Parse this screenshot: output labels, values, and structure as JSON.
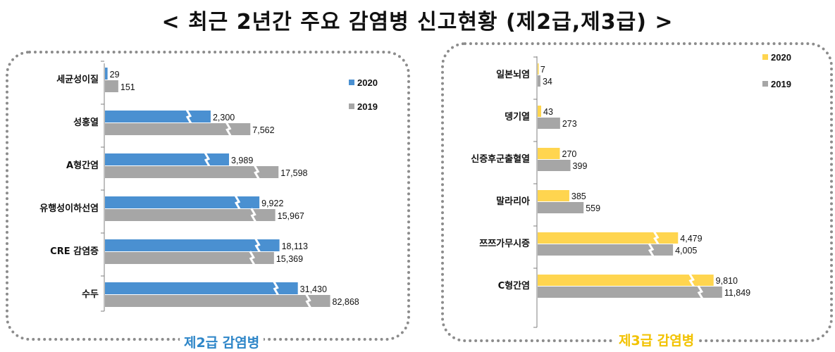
{
  "page_title": "< 최근 2년간 주요 감염병 신고현황 (제2급,제3급) >",
  "chart_data": [
    {
      "type": "bar",
      "orientation": "horizontal",
      "title": "제2급 감염병",
      "categories": [
        "세균성이질",
        "성홍열",
        "A형간염",
        "유행성이하선염",
        "CRE 감염증",
        "수두"
      ],
      "series": [
        {
          "name": "2020",
          "color": "#4a90d1",
          "values": [
            29,
            2300,
            3989,
            9922,
            18113,
            31430
          ]
        },
        {
          "name": "2019",
          "color": "#a6a6a6",
          "values": [
            151,
            7562,
            17598,
            15967,
            15369,
            82868
          ]
        }
      ],
      "value_labels": {
        "2020": [
          "29",
          "2,300",
          "3,989",
          "9,922",
          "18,113",
          "31,430"
        ],
        "2019": [
          "151",
          "7,562",
          "17,598",
          "15,967",
          "15,369",
          "82,868"
        ]
      },
      "axis_break": true,
      "legend_position": "top-right"
    },
    {
      "type": "bar",
      "orientation": "horizontal",
      "title": "제3급 감염병",
      "categories": [
        "일본뇌염",
        "뎅기열",
        "신증후군출혈열",
        "말라리아",
        "쯔쯔가무시증",
        "C형간염"
      ],
      "series": [
        {
          "name": "2020",
          "color": "#ffd54f",
          "values": [
            7,
            43,
            270,
            385,
            4479,
            9810
          ]
        },
        {
          "name": "2019",
          "color": "#a6a6a6",
          "values": [
            34,
            273,
            399,
            559,
            4005,
            11849
          ]
        }
      ],
      "value_labels": {
        "2020": [
          "7",
          "43",
          "270",
          "385",
          "4,479",
          "9,810"
        ],
        "2019": [
          "34",
          "273",
          "399",
          "559",
          "4,005",
          "11,849"
        ]
      },
      "axis_break": true,
      "legend_position": "top-right"
    }
  ],
  "panel_titles": {
    "left": "제2급 감염병",
    "right": "제3급 감염병"
  },
  "caption_colors": {
    "left": "#2e86c8",
    "right": "#f2c200"
  }
}
